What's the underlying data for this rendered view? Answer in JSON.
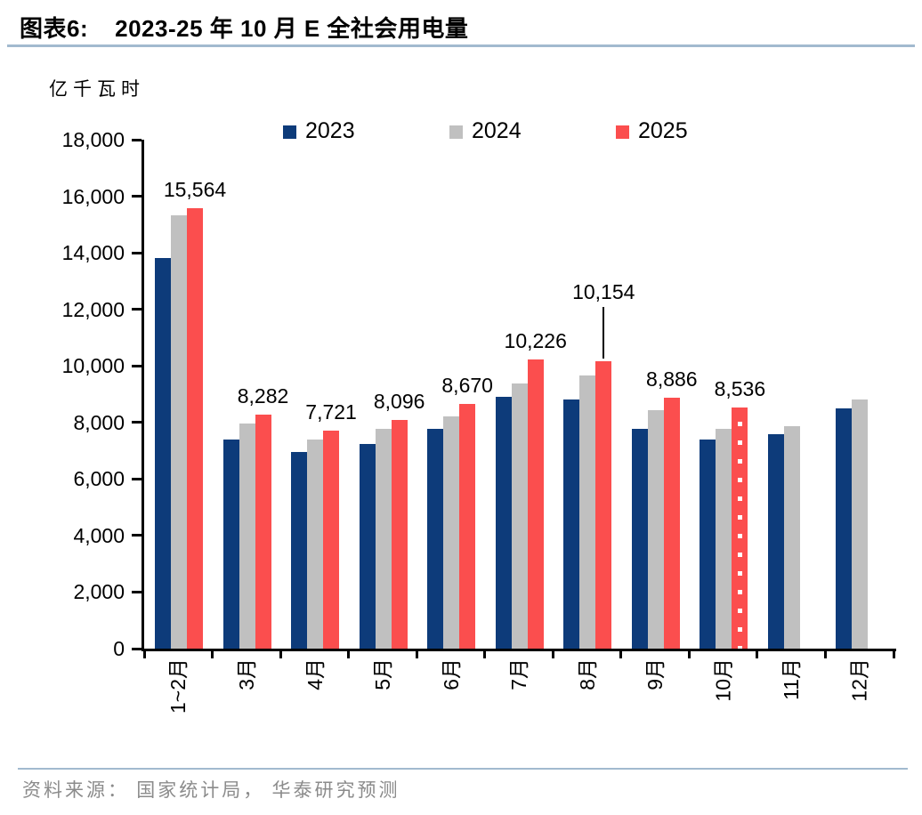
{
  "figure": {
    "title_prefix": "图表6:",
    "title_text": "2023-25 年 10 月 E 全社会用电量",
    "source": "资料来源： 国家统计局， 华泰研究预测"
  },
  "chart_data": {
    "type": "bar",
    "unit_label": "亿千瓦时",
    "categories": [
      "1~2月",
      "3月",
      "4月",
      "5月",
      "6月",
      "7月",
      "8月",
      "9月",
      "10月",
      "11月",
      "12月"
    ],
    "series": [
      {
        "name": "2023",
        "color": "#0d3b7a",
        "values": [
          13830,
          7400,
          6950,
          7240,
          7770,
          8900,
          8810,
          7770,
          7400,
          7590,
          8500
        ]
      },
      {
        "name": "2024",
        "color": "#c0c0c0",
        "values": [
          15320,
          7960,
          7410,
          7770,
          8210,
          9380,
          9660,
          8430,
          7780,
          7870,
          8810
        ]
      },
      {
        "name": "2025",
        "color": "#fb4e4e",
        "values": [
          15564,
          8282,
          7721,
          8096,
          8670,
          10226,
          10154,
          8886,
          8536,
          null,
          null
        ]
      }
    ],
    "data_labels": {
      "series": "2025",
      "labels": [
        "15,564",
        "8,282",
        "7,721",
        "8,096",
        "8,670",
        "10,226",
        "10,154",
        "8,886",
        "8,536",
        "",
        ""
      ]
    },
    "forecast": {
      "series": "2025",
      "category": "10月",
      "style": "white-dotted-center"
    },
    "callout": {
      "series": "2025",
      "category": "8月"
    },
    "ylim": [
      0,
      18000
    ],
    "ytick_step": 2000,
    "ytick_labels": [
      "0",
      "2,000",
      "4,000",
      "6,000",
      "8,000",
      "10,000",
      "12,000",
      "14,000",
      "16,000",
      "18,000"
    ],
    "legend": {
      "position": "top",
      "entries": [
        "2023",
        "2024",
        "2025"
      ]
    },
    "grid": false
  }
}
